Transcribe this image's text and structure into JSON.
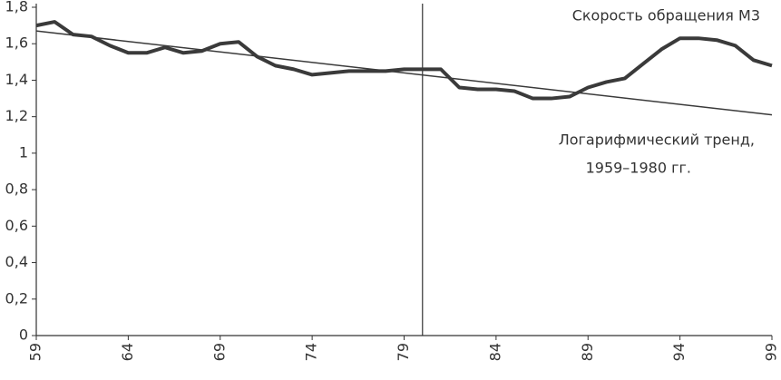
{
  "chart_data": {
    "type": "line",
    "x": [
      59,
      60,
      61,
      62,
      63,
      64,
      65,
      66,
      67,
      68,
      69,
      70,
      71,
      72,
      73,
      74,
      75,
      76,
      77,
      78,
      79,
      80,
      81,
      82,
      83,
      84,
      85,
      86,
      87,
      88,
      89,
      90,
      91,
      92,
      93,
      94,
      95,
      96,
      97,
      98,
      99
    ],
    "series": [
      {
        "color": "#3a3a3a",
        "values": [
          1.7,
          1.72,
          1.65,
          1.64,
          1.59,
          1.55,
          1.55,
          1.58,
          1.55,
          1.56,
          1.6,
          1.61,
          1.53,
          1.48,
          1.46,
          1.43,
          1.44,
          1.45,
          1.45,
          1.45,
          1.46,
          1.46,
          1.46,
          1.36,
          1.35,
          1.35,
          1.34,
          1.3,
          1.3,
          1.31,
          1.36,
          1.39,
          1.41,
          1.49,
          1.57,
          1.63,
          1.63,
          1.62,
          1.59,
          1.51,
          1.48
        ]
      }
    ],
    "trend": {
      "x": [
        59,
        99
      ],
      "values": [
        1.67,
        1.21
      ],
      "color": "#3a3a3a"
    },
    "vline": 80,
    "annotations": [
      "Скорость обращения М3",
      "Логарифмический тренд,",
      "1959–1980 гг."
    ],
    "xlim": [
      59,
      99
    ],
    "xticks": [
      59,
      64,
      69,
      74,
      79,
      84,
      89,
      94,
      99
    ],
    "ylim": [
      0,
      1.8
    ],
    "yticks": [
      0,
      {
        "value": 0.2,
        "label": "0,2"
      },
      {
        "value": 0.4,
        "label": "0,4"
      },
      {
        "value": 0.6,
        "label": "0,6"
      },
      {
        "value": 0.8,
        "label": "0,8"
      },
      1,
      {
        "value": 1.2,
        "label": "1,2"
      },
      {
        "value": 1.4,
        "label": "1,4"
      },
      {
        "value": 1.6,
        "label": "1,6"
      },
      {
        "value": 1.8,
        "label": "1,8"
      }
    ]
  }
}
